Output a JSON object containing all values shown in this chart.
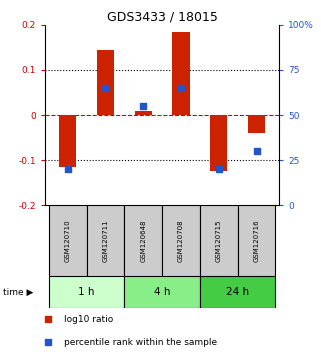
{
  "title": "GDS3433 / 18015",
  "samples": [
    "GSM120710",
    "GSM120711",
    "GSM120648",
    "GSM120708",
    "GSM120715",
    "GSM120716"
  ],
  "log10_ratio": [
    -0.115,
    0.145,
    0.01,
    0.185,
    -0.125,
    -0.04
  ],
  "percentile_rank": [
    20,
    65,
    55,
    65,
    20,
    30
  ],
  "ylim": [
    -0.2,
    0.2
  ],
  "yticks_left": [
    -0.2,
    -0.1,
    0.0,
    0.1,
    0.2
  ],
  "yticks_right": [
    0,
    25,
    50,
    75,
    100
  ],
  "ytick_labels_left": [
    "-0.2",
    "-0.1",
    "0",
    "0.1",
    "0.2"
  ],
  "ytick_labels_right": [
    "0",
    "25",
    "50",
    "75",
    "100%"
  ],
  "bar_color": "#cc2200",
  "dot_color": "#2255cc",
  "zero_line_color": "#cc0000",
  "grid_color": "#000000",
  "time_groups": [
    {
      "label": "1 h",
      "start": 0,
      "end": 2,
      "color": "#ccffcc"
    },
    {
      "label": "4 h",
      "start": 2,
      "end": 4,
      "color": "#88ee88"
    },
    {
      "label": "24 h",
      "start": 4,
      "end": 6,
      "color": "#44cc44"
    }
  ],
  "bar_width": 0.45,
  "dot_size": 18,
  "legend_items": [
    {
      "label": "log10 ratio",
      "color": "#cc2200"
    },
    {
      "label": "percentile rank within the sample",
      "color": "#2255cc"
    }
  ]
}
